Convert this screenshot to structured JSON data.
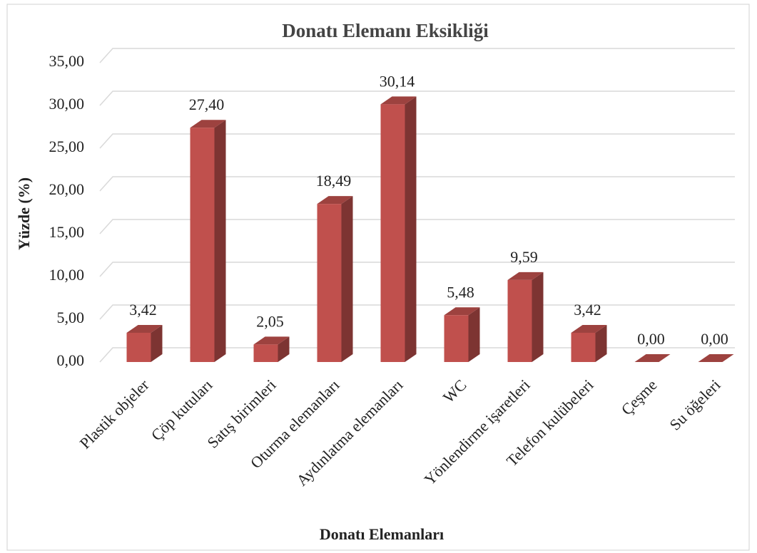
{
  "chart_data": {
    "type": "bar3d",
    "title": "Donatı Elemanı Eksikliği",
    "x_label": "Donatı Elemanları",
    "y_label": "Yüzde (%)",
    "categories": [
      "Plastik objeler",
      "Çöp kutuları",
      "Satış birimleri",
      "Oturma elemanları",
      "Aydınlatma elemanları",
      "WC",
      "Yönlendirme işaretleri",
      "Telefon kulübeleri",
      "Çeşme",
      "Su öğeleri"
    ],
    "values": [
      3.42,
      27.4,
      2.05,
      18.49,
      30.14,
      5.48,
      9.59,
      3.42,
      0.0,
      0.0
    ],
    "value_labels": [
      "3,42",
      "27,40",
      "2,05",
      "18,49",
      "30,14",
      "5,48",
      "9,59",
      "3,42",
      "0,00",
      "0,00"
    ],
    "color": "#c0504d",
    "ylim": [
      0,
      35
    ],
    "yticks": [
      {
        "value": 0,
        "label": "0,00"
      },
      {
        "value": 5,
        "label": "5,00"
      },
      {
        "value": 10,
        "label": "10,00"
      },
      {
        "value": 15,
        "label": "15,00"
      },
      {
        "value": 20,
        "label": "20,00"
      },
      {
        "value": 25,
        "label": "25,00"
      },
      {
        "value": 30,
        "label": "30,00"
      },
      {
        "value": 35,
        "label": "35,00"
      }
    ],
    "grid": true
  }
}
